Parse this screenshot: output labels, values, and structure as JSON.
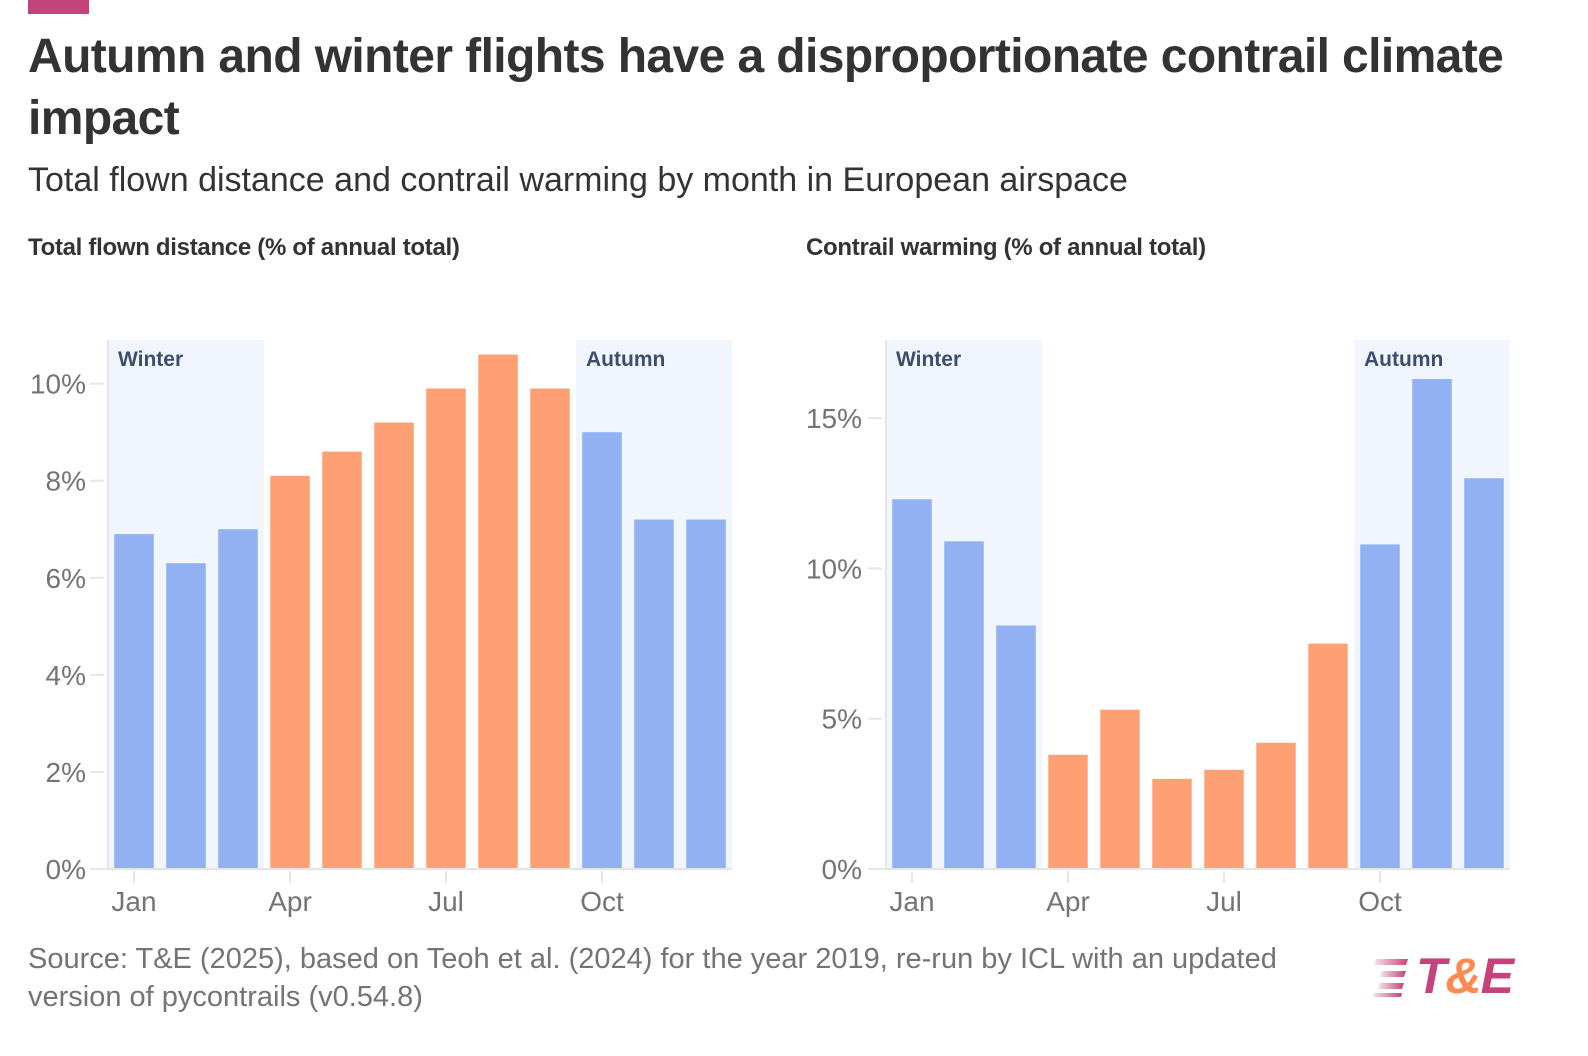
{
  "header": {
    "title": "Autumn and winter flights have a disproportionate contrail climate impact",
    "subtitle": "Total flown distance and contrail warming by month in European airspace",
    "accent_color": "#c3437a"
  },
  "colors": {
    "cold_season": "#91b1f2",
    "warm_season": "#ffa074",
    "season_shade": "#f1f5fd",
    "season_label": "#3d4d6e",
    "axis_text": "#747474",
    "gridline": "#e6e6e6"
  },
  "chart_data": [
    {
      "type": "bar",
      "title": "Total flown distance (% of annual total)",
      "xlabel": "",
      "ylabel": "",
      "categories": [
        "Jan",
        "Feb",
        "Mar",
        "Apr",
        "May",
        "Jun",
        "Jul",
        "Aug",
        "Sep",
        "Oct",
        "Nov",
        "Dec"
      ],
      "values": [
        6.9,
        6.3,
        7.0,
        8.1,
        8.6,
        9.2,
        9.9,
        10.6,
        9.9,
        9.0,
        7.2,
        7.2
      ],
      "season": [
        "winter",
        "winter",
        "winter",
        "other",
        "other",
        "other",
        "other",
        "other",
        "other",
        "autumn",
        "autumn",
        "autumn"
      ],
      "ylim": [
        0,
        10.9
      ],
      "yticks": [
        0,
        2,
        4,
        6,
        8,
        10
      ],
      "ytick_labels": [
        "0%",
        "2%",
        "4%",
        "6%",
        "8%",
        "10%"
      ],
      "xticks": [
        "Jan",
        "Apr",
        "Jul",
        "Oct"
      ],
      "shaded_regions": [
        {
          "label": "Winter",
          "from": "Jan",
          "to": "Mar"
        },
        {
          "label": "Autumn",
          "from": "Oct",
          "to": "Dec"
        }
      ],
      "grid": false,
      "legend": "none"
    },
    {
      "type": "bar",
      "title": "Contrail warming (% of annual total)",
      "xlabel": "",
      "ylabel": "",
      "categories": [
        "Jan",
        "Feb",
        "Mar",
        "Apr",
        "May",
        "Jun",
        "Jul",
        "Aug",
        "Sep",
        "Oct",
        "Nov",
        "Dec"
      ],
      "values": [
        12.3,
        10.9,
        8.1,
        3.8,
        5.3,
        3.0,
        3.3,
        4.2,
        7.5,
        10.8,
        16.3,
        13.0
      ],
      "season": [
        "winter",
        "winter",
        "winter",
        "other",
        "other",
        "other",
        "other",
        "other",
        "other",
        "autumn",
        "autumn",
        "autumn"
      ],
      "ylim": [
        0,
        17.6
      ],
      "yticks": [
        0,
        5,
        10,
        15
      ],
      "ytick_labels": [
        "0%",
        "5%",
        "10%",
        "15%"
      ],
      "xticks": [
        "Jan",
        "Apr",
        "Jul",
        "Oct"
      ],
      "shaded_regions": [
        {
          "label": "Winter",
          "from": "Jan",
          "to": "Mar"
        },
        {
          "label": "Autumn",
          "from": "Oct",
          "to": "Dec"
        }
      ],
      "grid": false,
      "legend": "none"
    }
  ],
  "footer": {
    "source": "Source: T&E (2025), based on Teoh et al. (2024) for the year 2019, re-run by ICL with an updated version of pycontrails (v0.54.8)",
    "logo": {
      "t": "T",
      "amp": "&",
      "e": "E"
    }
  }
}
